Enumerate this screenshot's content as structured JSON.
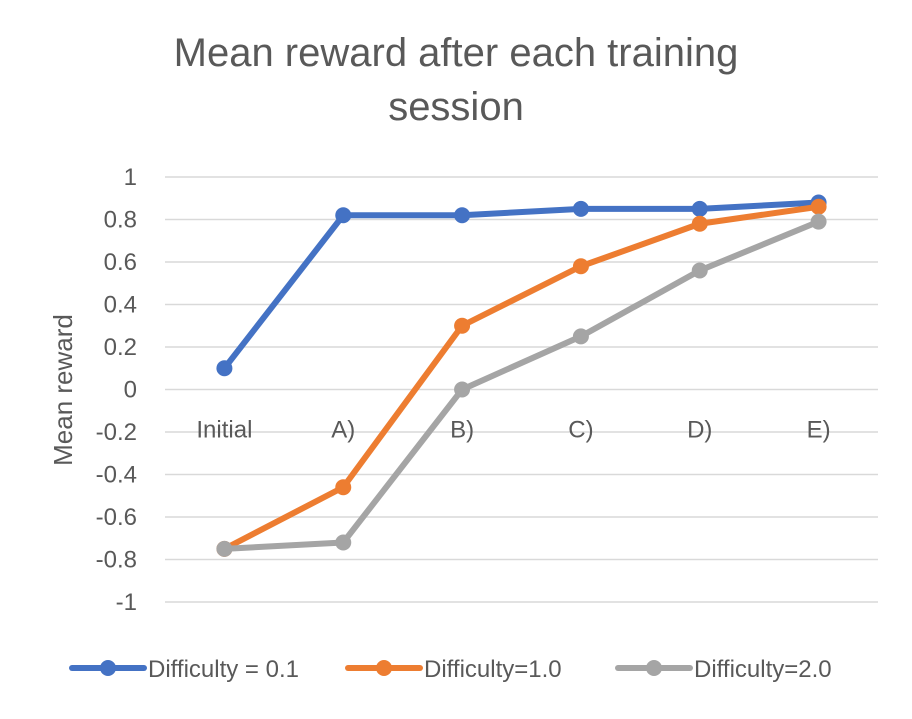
{
  "chart_data": {
    "type": "line",
    "title_lines": [
      "Mean reward after each training",
      "session"
    ],
    "ylabel": "Mean reward",
    "xlabel": "",
    "categories": [
      "Initial",
      "A)",
      "B)",
      "C)",
      "D)",
      "E)"
    ],
    "ylim": [
      -1,
      1
    ],
    "yticks": [
      1,
      0.8,
      0.6,
      0.4,
      0.2,
      0,
      -0.2,
      -0.4,
      -0.6,
      -0.8,
      -1
    ],
    "ytick_labels": [
      "1",
      "0.8",
      "0.6",
      "0.4",
      "0.2",
      "0",
      "-0.2",
      "-0.4",
      "-0.6",
      "-0.8",
      "-1"
    ],
    "grid": true,
    "legend_position": "bottom",
    "series": [
      {
        "name": "Difficulty = 0.1",
        "color": "#4472C4",
        "values": [
          0.1,
          0.82,
          0.82,
          0.85,
          0.85,
          0.88
        ]
      },
      {
        "name": "Difficulty=1.0",
        "color": "#ED7D31",
        "values": [
          -0.75,
          -0.46,
          0.3,
          0.58,
          0.78,
          0.86
        ]
      },
      {
        "name": "Difficulty=2.0",
        "color": "#A5A5A5",
        "values": [
          -0.75,
          -0.72,
          0.0,
          0.25,
          0.56,
          0.79
        ]
      }
    ]
  }
}
